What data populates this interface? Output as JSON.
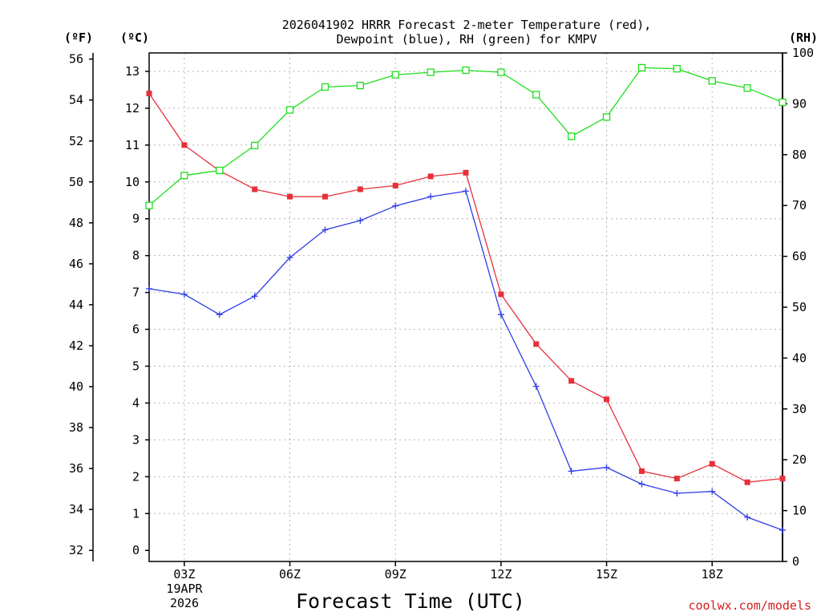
{
  "chart_data": {
    "type": "line",
    "title": [
      "2026041902 HRRR Forecast 2-meter Temperature (red),",
      "Dewpoint (blue), RH (green) for KMPV"
    ],
    "xlabel": "Forecast Time (UTC)",
    "date_labels": [
      "19APR",
      "2026"
    ],
    "watermark": "coolwx.com/models",
    "x_hours": [
      2,
      3,
      4,
      5,
      6,
      7,
      8,
      9,
      10,
      11,
      12,
      13,
      14,
      15,
      16,
      17,
      18,
      19,
      20
    ],
    "xlim": [
      2,
      20
    ],
    "x_ticks": [
      {
        "hour": 3,
        "label": "03Z"
      },
      {
        "hour": 6,
        "label": "06Z"
      },
      {
        "hour": 9,
        "label": "09Z"
      },
      {
        "hour": 12,
        "label": "12Z"
      },
      {
        "hour": 15,
        "label": "15Z"
      },
      {
        "hour": 18,
        "label": "18Z"
      }
    ],
    "celsius_axis": {
      "label": "(ºC)",
      "ylim": [
        -0.3,
        13.5
      ],
      "ticks": [
        0,
        1,
        2,
        3,
        4,
        5,
        6,
        7,
        8,
        9,
        10,
        11,
        12,
        13
      ]
    },
    "fahrenheit_axis": {
      "label": "(ºF)",
      "ticks": [
        32,
        34,
        36,
        38,
        40,
        42,
        44,
        46,
        48,
        50,
        52,
        54,
        56
      ]
    },
    "rh_axis": {
      "label": "(RH)",
      "ylim": [
        0,
        100
      ],
      "ticks": [
        0,
        10,
        20,
        30,
        40,
        50,
        60,
        70,
        80,
        90,
        100
      ]
    },
    "series": [
      {
        "name": "Temperature",
        "units": "C",
        "color": "#e6303a",
        "marker": "filled-square",
        "values": [
          12.4,
          11.0,
          10.3,
          9.8,
          9.6,
          9.6,
          9.8,
          9.9,
          10.15,
          10.25,
          6.95,
          5.6,
          4.6,
          4.1,
          2.15,
          1.95,
          2.35,
          1.85,
          1.95
        ]
      },
      {
        "name": "Dewpoint",
        "units": "C",
        "color": "#2e3de6",
        "marker": "plus",
        "values": [
          7.1,
          6.95,
          6.4,
          6.9,
          7.95,
          8.7,
          8.95,
          9.35,
          9.6,
          9.75,
          6.4,
          4.45,
          2.15,
          2.25,
          1.8,
          1.55,
          1.6,
          0.9,
          0.55
        ]
      },
      {
        "name": "RH",
        "units": "%",
        "color": "#1ede1e",
        "marker": "open-square",
        "values": [
          70.0,
          75.9,
          76.9,
          81.8,
          88.8,
          93.3,
          93.6,
          95.7,
          96.2,
          96.6,
          96.2,
          91.8,
          83.6,
          87.4,
          97.1,
          96.9,
          94.5,
          93.1,
          90.3
        ]
      }
    ]
  }
}
